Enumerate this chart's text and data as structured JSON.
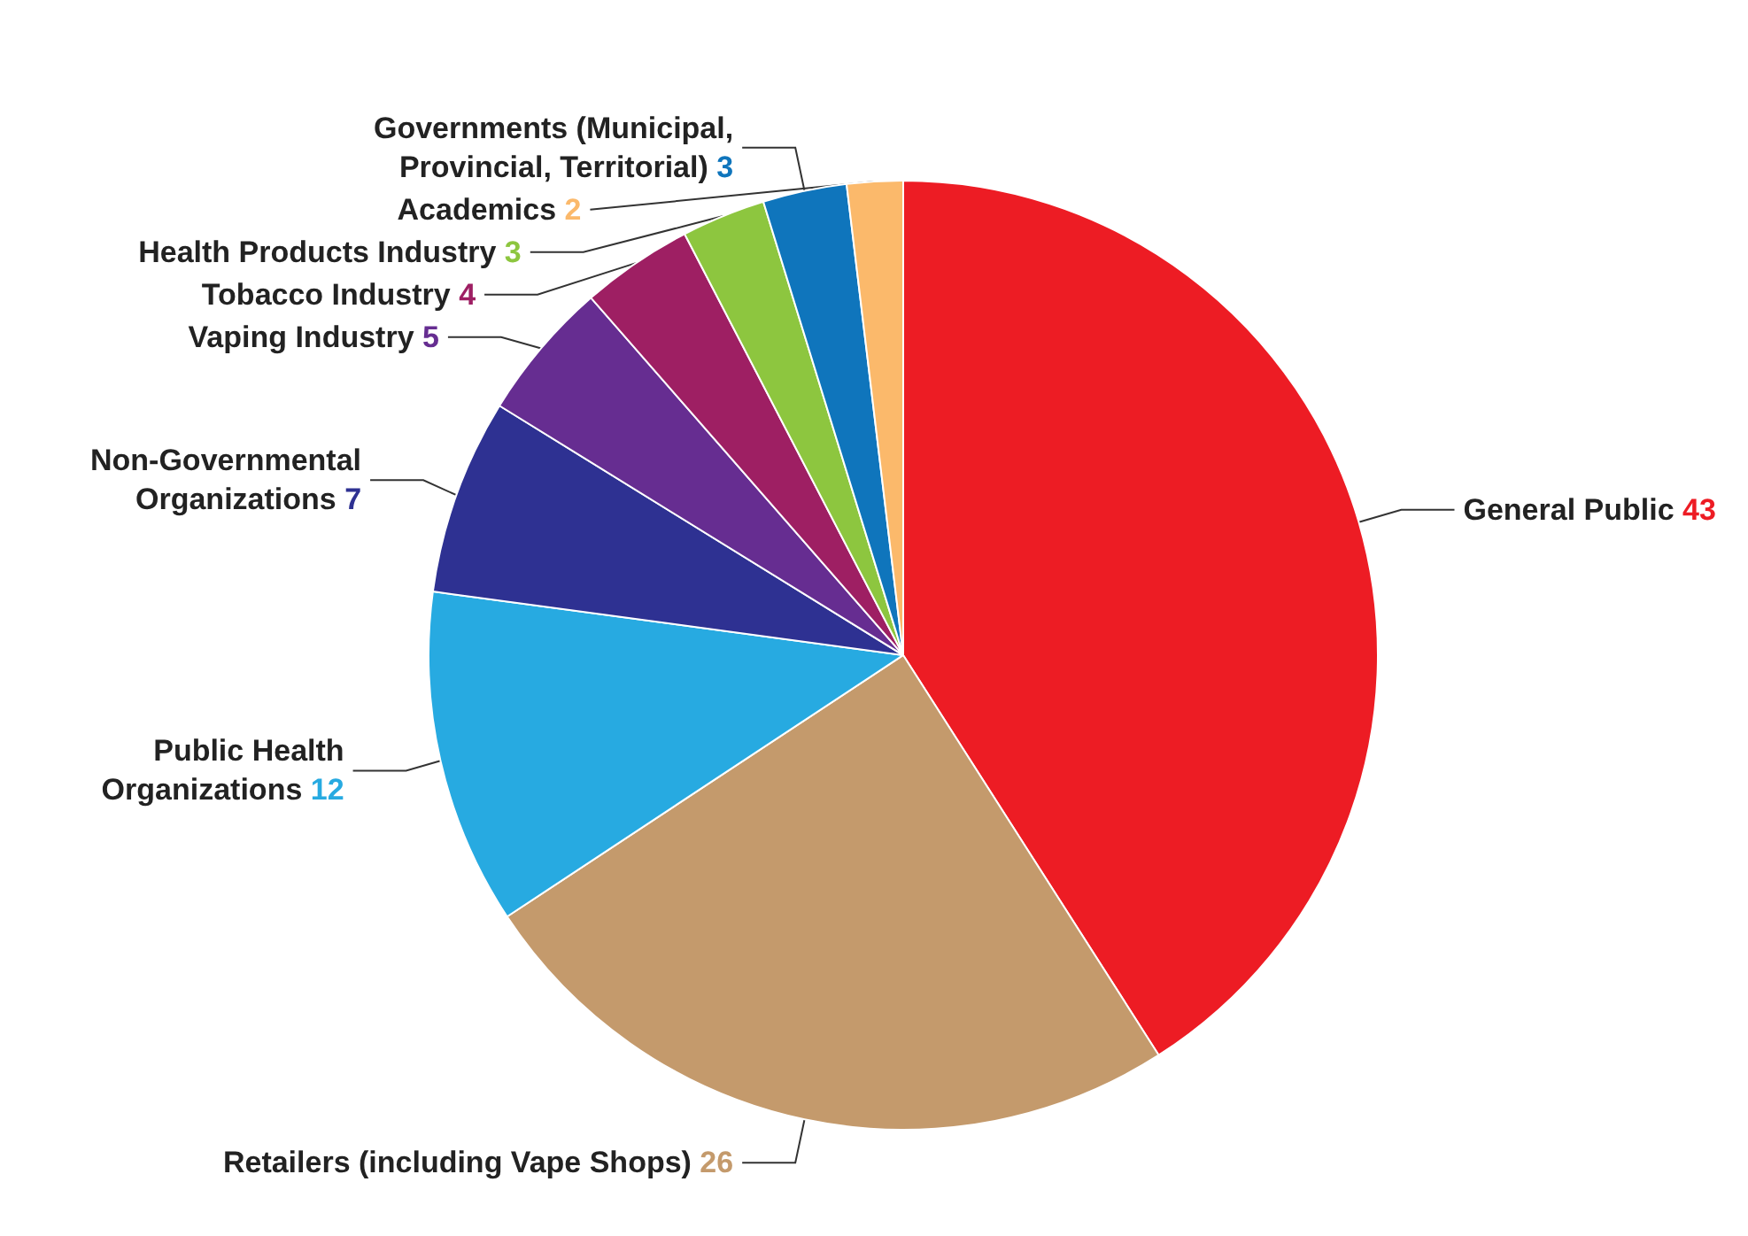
{
  "chart_data": {
    "type": "pie",
    "categories": [
      "General Public",
      "Retailers (including Vape Shops)",
      "Public Health\nOrganizations",
      "Non-Governmental\nOrganizations",
      "Vaping Industry",
      "Tobacco Industry",
      "Health Products Industry",
      "Governments (Municipal,\nProvincial, Territorial)",
      "Academics"
    ],
    "values": [
      43,
      26,
      12,
      7,
      5,
      4,
      3,
      3,
      2
    ],
    "colors": [
      "#ed1c24",
      "#c49a6c",
      "#27aae1",
      "#2e3192",
      "#662d91",
      "#9e1f63",
      "#8dc63f",
      "#0f75bc",
      "#fbb96b"
    ],
    "data_labels": true,
    "legend": false
  }
}
